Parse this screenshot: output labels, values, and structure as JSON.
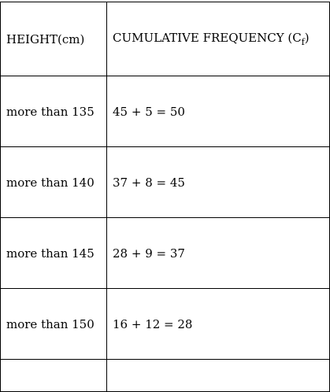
{
  "table": {
    "headers": {
      "height": "HEIGHT(cm)",
      "cumulative_prefix": "CUMULATIVE FREQUENCY (C",
      "cumulative_sub": "f",
      "cumulative_suffix": ")"
    },
    "rows": [
      {
        "height": "more than 135",
        "cf": "45 + 5 = 50"
      },
      {
        "height": "more than 140",
        "cf": "37 + 8 = 45"
      },
      {
        "height": "more than 145",
        "cf": "28 + 9 = 37"
      },
      {
        "height": "more than 150",
        "cf": "16 + 12 = 28"
      }
    ]
  }
}
